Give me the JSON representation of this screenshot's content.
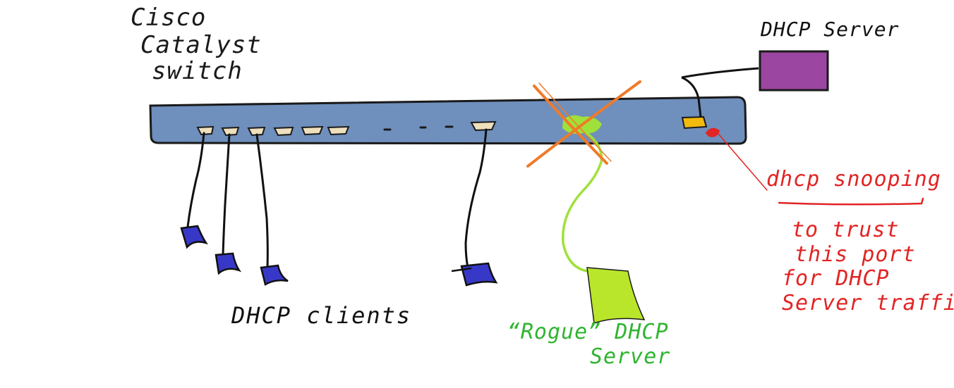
{
  "labels": {
    "switch": [
      "Cisco",
      "Catalyst",
      "switch"
    ],
    "dhcp_server": "DHCP Server",
    "dhcp_clients": "DHCP clients",
    "rogue_server": [
      "“Rogue” DHCP",
      "Server"
    ],
    "dhcp_snooping": "dhcp snooping",
    "trust_note": [
      "to trust",
      "this port",
      "for DHCP",
      "Server traffic."
    ]
  },
  "colors": {
    "switch_body": "#6f8fbd",
    "port": "#eedfbd",
    "trusted_port": "#f2b90f",
    "dhcp_server": "#9b46a0",
    "client": "#3838c8",
    "rogue_server": "#b9e62a",
    "rogue_cable": "#9fe13a",
    "block_cross": "#f07a28",
    "annotation": "#e22424",
    "ink": "#111111"
  },
  "icons": [
    "dhcp-server-icon",
    "rogue-server-icon",
    "client-icon",
    "blocked-cross-icon"
  ]
}
